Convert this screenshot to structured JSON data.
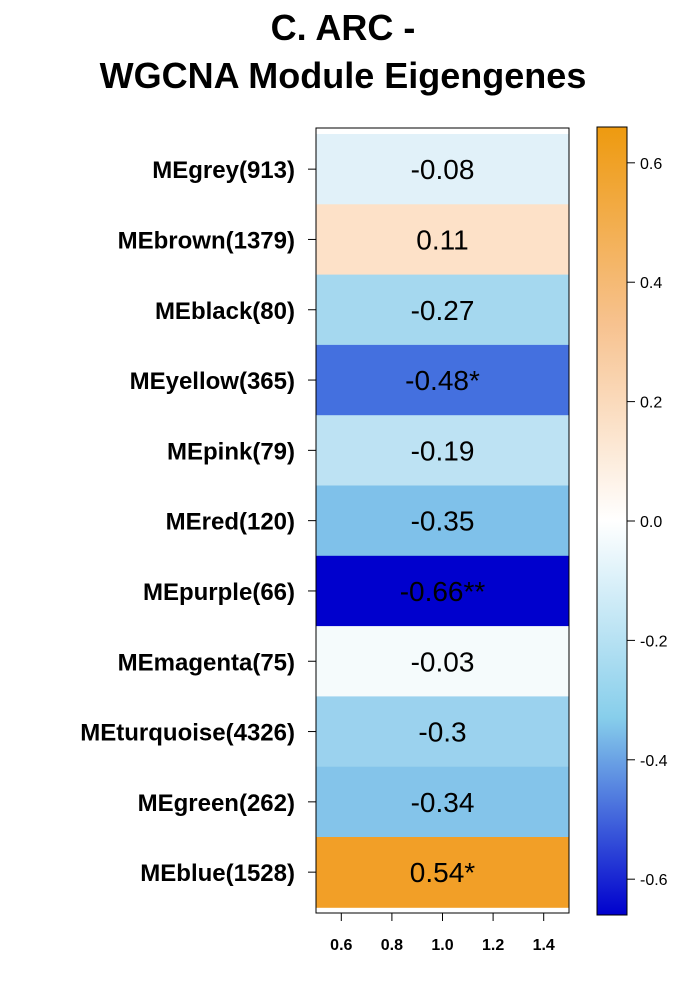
{
  "chart_data": {
    "type": "heatmap",
    "title": [
      "C. ARC -",
      "WGCNA Module Eigengenes"
    ],
    "rows": [
      {
        "label": "MEgrey(913)",
        "value": -0.08,
        "text": "-0.08",
        "color": "#E1F1F9"
      },
      {
        "label": "MEbrown(1379)",
        "value": 0.11,
        "text": "0.11",
        "color": "#FDE1C8"
      },
      {
        "label": "MEblack(80)",
        "value": -0.27,
        "text": "-0.27",
        "color": "#A5D8EF"
      },
      {
        "label": "MEyellow(365)",
        "value": -0.48,
        "text": "-0.48*",
        "color": "#4470DF"
      },
      {
        "label": "MEpink(79)",
        "value": -0.19,
        "text": "-0.19",
        "color": "#BDE2F3"
      },
      {
        "label": "MEred(120)",
        "value": -0.35,
        "text": "-0.35",
        "color": "#7FC1EA"
      },
      {
        "label": "MEpurple(66)",
        "value": -0.66,
        "text": "-0.66**",
        "color": "#0000CD"
      },
      {
        "label": "MEmagenta(75)",
        "value": -0.03,
        "text": "-0.03",
        "color": "#F5FBFC"
      },
      {
        "label": "MEturquoise(4326)",
        "value": -0.3,
        "text": "-0.3",
        "color": "#9BD2EE"
      },
      {
        "label": "MEgreen(262)",
        "value": -0.34,
        "text": "-0.34",
        "color": "#84C4EA"
      },
      {
        "label": "MEblue(1528)",
        "value": 0.54,
        "text": "0.54*",
        "color": "#F29F27"
      }
    ],
    "x_ticks": [
      "0.6",
      "0.8",
      "1.0",
      "1.2",
      "1.4"
    ],
    "x_tick_values": [
      0.6,
      0.8,
      1.0,
      1.2,
      1.4
    ],
    "xlim": [
      0.5,
      1.5
    ],
    "colorbar": {
      "range": [
        -0.66,
        0.66
      ],
      "ticks": [
        0.6,
        0.4,
        0.2,
        0.0,
        -0.2,
        -0.4,
        -0.6
      ],
      "tick_labels": [
        "0.6",
        "0.4",
        "0.2",
        "0.0",
        "-0.2",
        "-0.4",
        "-0.6"
      ],
      "low_color": "#0000CD",
      "mid_low_color": "#87CEEB",
      "mid_color": "#FFFFFF",
      "high_color": "#EE9A0F"
    }
  }
}
